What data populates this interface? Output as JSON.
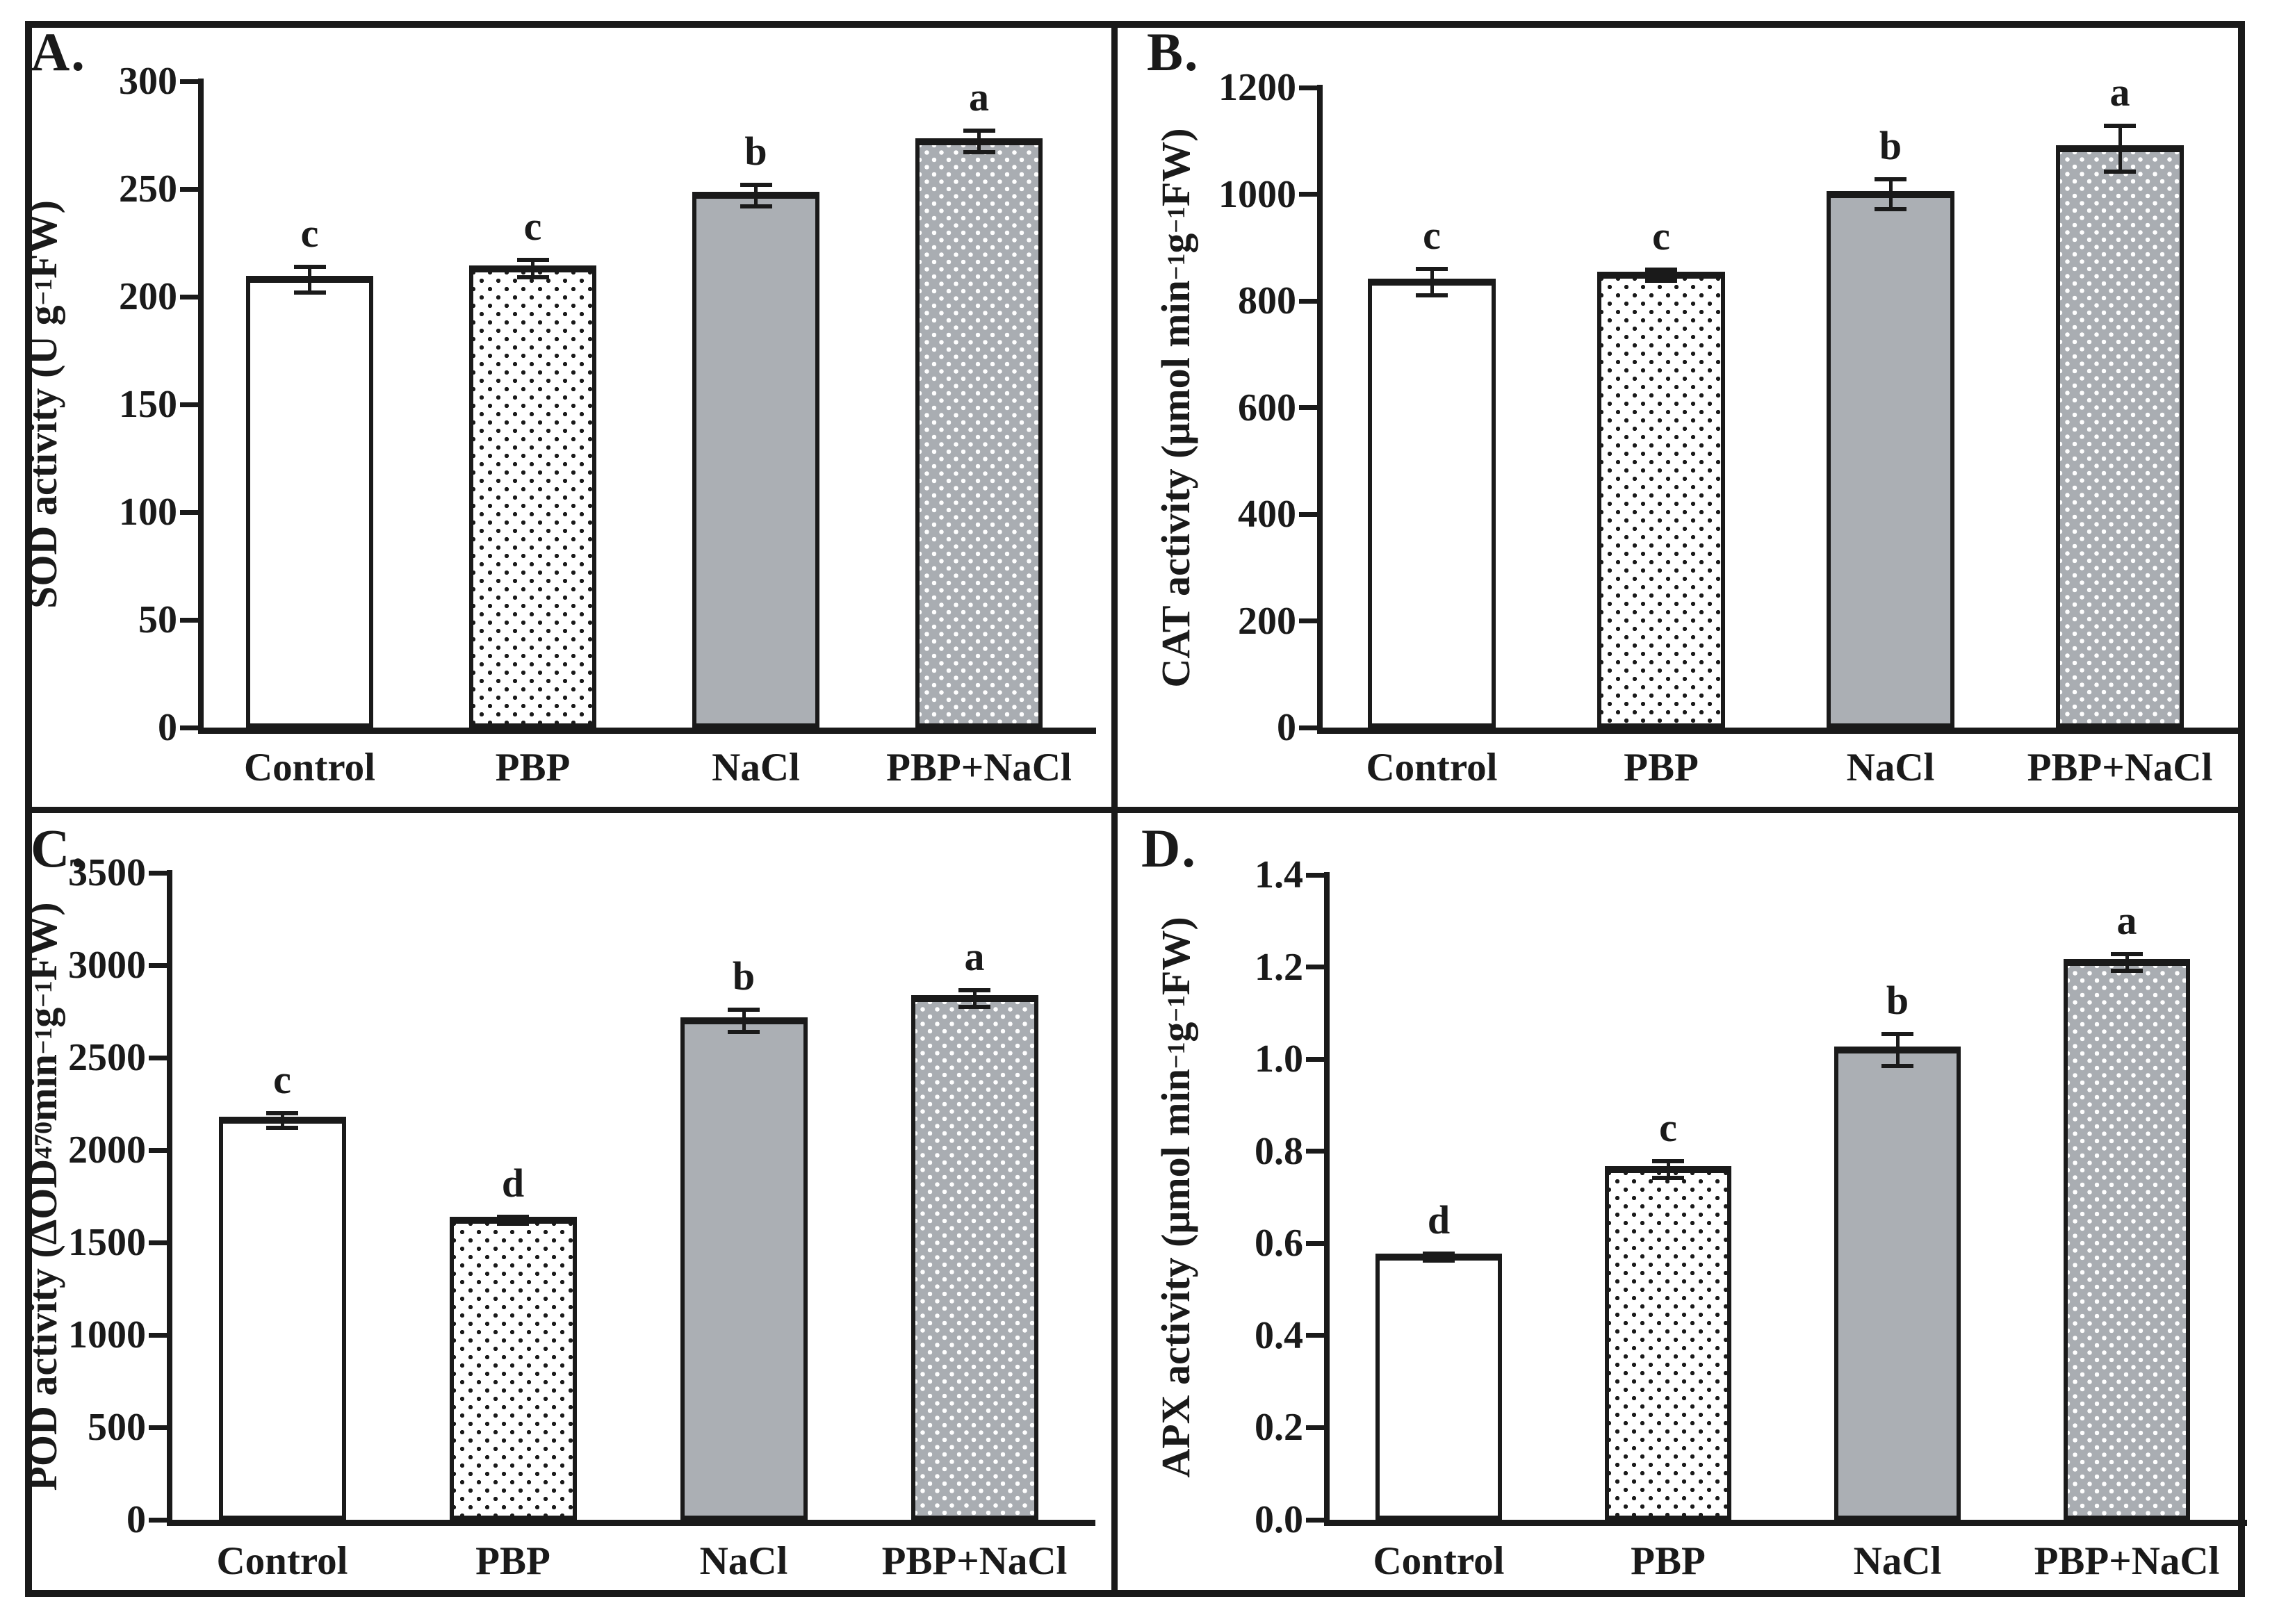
{
  "figure": {
    "description": "Four-panel bar chart figure of antioxidant enzyme activities under PBP and NaCl treatments",
    "panel_letters": [
      "A.",
      "B.",
      "C.",
      "D."
    ],
    "colors": {
      "ink": "#1a1a1a",
      "bar_gray": "#a9adb2",
      "background": "#ffffff"
    }
  },
  "chart_data": [
    {
      "id": "A",
      "panel_label": "A.",
      "type": "bar",
      "title": "",
      "xlabel": "",
      "ylabel": "SOD activity (U g⁻¹FW)",
      "ylabel_parts": [
        {
          "text": "SOD activity (U g"
        },
        {
          "text": "−1",
          "script": "super"
        },
        {
          "text": "FW)"
        }
      ],
      "categories": [
        "Control",
        "PBP",
        "NaCl",
        "PBP+NaCl"
      ],
      "values": [
        208,
        213,
        247,
        272
      ],
      "errors": [
        6,
        4,
        5,
        5
      ],
      "sig_letters": [
        "c",
        "c",
        "b",
        "a"
      ],
      "bar_styles": [
        "plain-white",
        "dotted-white",
        "solid-gray",
        "dotted-gray"
      ],
      "ylim": [
        0,
        300
      ],
      "y_ticks": [
        "0",
        "50",
        "100",
        "150",
        "200",
        "250",
        "300"
      ],
      "grid": false,
      "legend": "none"
    },
    {
      "id": "B",
      "panel_label": "B.",
      "type": "bar",
      "title": "",
      "xlabel": "",
      "ylabel": "CAT activity (μmol min⁻¹g⁻¹FW)",
      "ylabel_parts": [
        {
          "text": "CAT activity (μmol min"
        },
        {
          "text": "−1",
          "script": "super"
        },
        {
          "text": "g"
        },
        {
          "text": "−1",
          "script": "super"
        },
        {
          "text": "FW)"
        }
      ],
      "categories": [
        "Control",
        "PBP",
        "NaCl",
        "PBP+NaCl"
      ],
      "values": [
        835,
        848,
        1000,
        1085
      ],
      "errors": [
        25,
        10,
        28,
        43
      ],
      "sig_letters": [
        "c",
        "c",
        "b",
        "a"
      ],
      "bar_styles": [
        "plain-white",
        "dotted-white",
        "solid-gray",
        "dotted-gray"
      ],
      "ylim": [
        0,
        1200
      ],
      "y_ticks": [
        "0",
        "200",
        "400",
        "600",
        "800",
        "1000",
        "1200"
      ],
      "grid": false,
      "legend": "none"
    },
    {
      "id": "C",
      "panel_label": "C.",
      "type": "bar",
      "title": "",
      "xlabel": "",
      "ylabel": "POD activity (ΔOD₄₇₀ min⁻¹g⁻¹FW)",
      "ylabel_parts": [
        {
          "text": "POD activity (ΔOD"
        },
        {
          "text": "470",
          "script": "sub"
        },
        {
          "text": " min"
        },
        {
          "text": "−1",
          "script": "super"
        },
        {
          "text": "g"
        },
        {
          "text": "−1",
          "script": "super"
        },
        {
          "text": "FW)"
        }
      ],
      "categories": [
        "Control",
        "PBP",
        "NaCl",
        "PBP+NaCl"
      ],
      "values": [
        2160,
        1620,
        2700,
        2820
      ],
      "errors": [
        40,
        20,
        60,
        45
      ],
      "sig_letters": [
        "c",
        "d",
        "b",
        "a"
      ],
      "bar_styles": [
        "plain-white",
        "dotted-white",
        "solid-gray",
        "dotted-gray"
      ],
      "ylim": [
        0,
        3500
      ],
      "y_ticks": [
        "0",
        "500",
        "1000",
        "1500",
        "2000",
        "2500",
        "3000",
        "3500"
      ],
      "grid": false,
      "legend": "none"
    },
    {
      "id": "D",
      "panel_label": "D.",
      "type": "bar",
      "title": "",
      "xlabel": "",
      "ylabel": "APX activity (μmol min⁻¹g⁻¹FW)",
      "ylabel_parts": [
        {
          "text": "APX activity (μmol min"
        },
        {
          "text": "−1",
          "script": "super"
        },
        {
          "text": "g"
        },
        {
          "text": "−1",
          "script": "super"
        },
        {
          "text": "FW)"
        }
      ],
      "categories": [
        "Control",
        "PBP",
        "NaCl",
        "PBP+NaCl"
      ],
      "values": [
        0.57,
        0.76,
        1.02,
        1.21
      ],
      "errors": [
        0.008,
        0.018,
        0.035,
        0.018
      ],
      "sig_letters": [
        "d",
        "c",
        "b",
        "a"
      ],
      "bar_styles": [
        "plain-white",
        "dotted-white",
        "solid-gray",
        "dotted-gray"
      ],
      "ylim": [
        0,
        1.4
      ],
      "y_ticks": [
        "0.0",
        "0.2",
        "0.4",
        "0.6",
        "0.8",
        "1.0",
        "1.2",
        "1.4"
      ],
      "grid": false,
      "legend": "none"
    }
  ]
}
